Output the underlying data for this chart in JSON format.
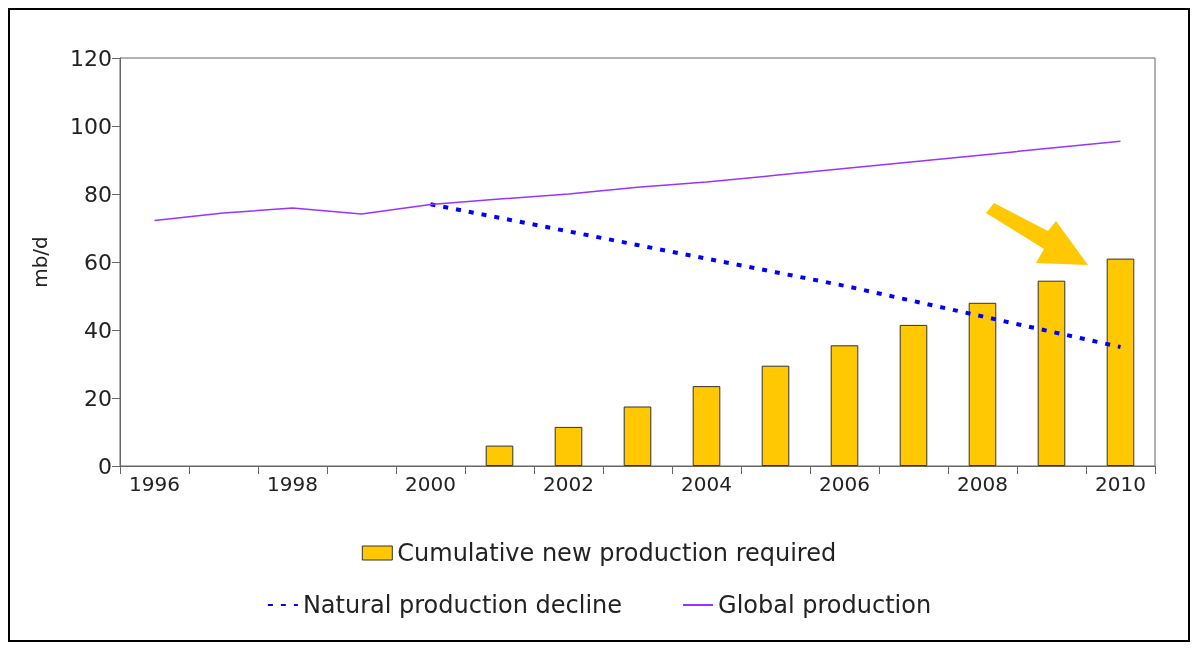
{
  "chart_data": {
    "type": "bar",
    "ylabel": "mb/d",
    "categories": [
      "1996",
      null,
      "1998",
      null,
      "2000",
      null,
      "2002",
      null,
      "2004",
      null,
      "2006",
      null,
      "2008",
      null,
      "2010"
    ],
    "ylim": [
      0,
      120
    ],
    "yticks": [
      0,
      20,
      40,
      60,
      80,
      100,
      120
    ],
    "grid": false,
    "legend": "bottom",
    "series": [
      {
        "name": "Cumulative new production required",
        "color": "#ffc800",
        "values": [
          null,
          null,
          null,
          null,
          null,
          6,
          11.5,
          17.5,
          23.5,
          29.5,
          35.5,
          41.5,
          48,
          54.5,
          61
        ]
      },
      {
        "name": "Natural production decline",
        "type": "line",
        "line_style": "dotted",
        "color": "#0000ff",
        "values": [
          null,
          null,
          null,
          null,
          77,
          73,
          69,
          65,
          61,
          57,
          53,
          48.5,
          44,
          39.5,
          35
        ]
      },
      {
        "name": "Global production",
        "type": "line",
        "line_style": "solid",
        "color": "#9933ff",
        "values": [
          72.2,
          74.4,
          75.9,
          74.1,
          76.9,
          78.5,
          80,
          82,
          83.5,
          85.5,
          87.5,
          89.5,
          91.5,
          93.5,
          95.5
        ]
      }
    ]
  }
}
